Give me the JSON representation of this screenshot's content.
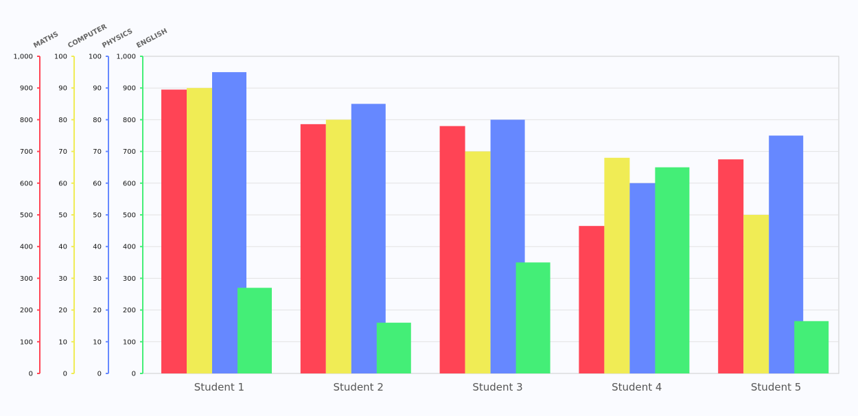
{
  "chart_data": {
    "type": "bar",
    "categories": [
      "Student 1",
      "Student 2",
      "Student 3",
      "Student 4",
      "Student 5"
    ],
    "series": [
      {
        "name": "MATHS",
        "color": "#ff4455",
        "axis_max": 1000,
        "axis_step": 100,
        "values": [
          895,
          786,
          780,
          465,
          675
        ]
      },
      {
        "name": "COMPUTER",
        "color": "#f0ec55",
        "axis_max": 100,
        "axis_step": 10,
        "values": [
          90,
          80,
          70,
          68,
          50
        ]
      },
      {
        "name": "PHYSICS",
        "color": "#6688ff",
        "axis_max": 100,
        "axis_step": 10,
        "values": [
          95,
          85,
          80,
          60,
          75
        ]
      },
      {
        "name": "ENGLISH",
        "color": "#44ee77",
        "axis_max": 1000,
        "axis_step": 100,
        "values": [
          270,
          160,
          350,
          650,
          165
        ]
      }
    ],
    "y_axes": [
      {
        "title": "MATHS",
        "ylim": [
          0,
          1000
        ],
        "ticks": [
          "0",
          "100",
          "200",
          "300",
          "400",
          "500",
          "600",
          "700",
          "800",
          "900",
          "1,000"
        ]
      },
      {
        "title": "COMPUTER",
        "ylim": [
          0,
          100
        ],
        "ticks": [
          "0",
          "10",
          "20",
          "30",
          "40",
          "50",
          "60",
          "70",
          "80",
          "90",
          "100"
        ]
      },
      {
        "title": "PHYSICS",
        "ylim": [
          0,
          100
        ],
        "ticks": [
          "0",
          "10",
          "20",
          "30",
          "40",
          "50",
          "60",
          "70",
          "80",
          "90",
          "100"
        ]
      },
      {
        "title": "ENGLISH",
        "ylim": [
          0,
          1000
        ],
        "ticks": [
          "0",
          "100",
          "200",
          "300",
          "400",
          "500",
          "600",
          "700",
          "800",
          "900",
          "1,000"
        ]
      }
    ],
    "grid": true,
    "legend": "none"
  }
}
